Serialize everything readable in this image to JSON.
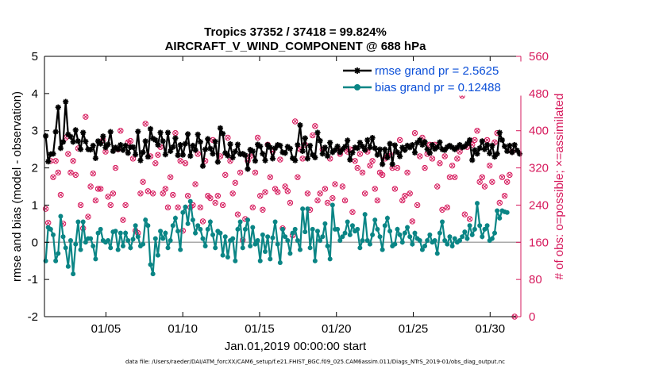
{
  "chart_data": {
    "type": "line",
    "title": "Tropics 37352 / 37418 = 99.824%",
    "subtitle": "AIRCRAFT_V_WIND_COMPONENT @ 688 hPa",
    "xlabel": "Jan.01,2019 00:00:00 start",
    "ylabel": "rmse and bias (model - observation)",
    "y2label": "# of obs: o=possible; ×=assimilated",
    "footnote": "data file: /Users/raeder/DAI/ATM_forcXX/CAM6_setup/f.e21.FHIST_BGC.f09_025.CAM6assim.011/Diags_NTrS_2019-01/obs_diag_output.nc",
    "xlim": [
      1,
      32
    ],
    "ylim": [
      -2,
      5
    ],
    "y2lim": [
      0,
      560
    ],
    "xticks": [
      5,
      10,
      15,
      20,
      25,
      30
    ],
    "xtick_labels": [
      "01/05",
      "01/10",
      "01/15",
      "01/20",
      "01/25",
      "01/30"
    ],
    "yticks": [
      -2,
      -1,
      0,
      1,
      2,
      3,
      4,
      5
    ],
    "y2ticks": [
      0,
      80,
      160,
      240,
      320,
      400,
      480,
      560
    ],
    "grid": false,
    "legend_position": "top-right",
    "colors": {
      "rmse": "#000000",
      "bias": "#0a8585",
      "obs": "#d6195c",
      "zero_line": "#aaaaaa",
      "right_axis": "#d6195c",
      "legend_text": "#0b4fd8"
    },
    "series": [
      {
        "name": "rmse grand pr = 2.5625",
        "axis": "left",
        "marker": "asterisk",
        "values": [
          2.86,
          2.17,
          2.37,
          2.38,
          2.97,
          3.63,
          2.53,
          2.7,
          3.78,
          2.9,
          2.84,
          2.7,
          3.02,
          2.72,
          2.5,
          2.95,
          2.71,
          2.5,
          2.49,
          2.6,
          2.26,
          2.72,
          2.65,
          2.85,
          2.55,
          2.63,
          2.97,
          2.45,
          2.55,
          2.5,
          2.62,
          2.48,
          2.6,
          2.4,
          2.56,
          2.56,
          2.36,
          2.98,
          2.2,
          2.42,
          2.72,
          2.3,
          3.05,
          2.79,
          2.75,
          2.62,
          2.95,
          2.72,
          2.36,
          2.95,
          2.45,
          2.56,
          2.8,
          2.34,
          2.62,
          2.35,
          2.65,
          2.91,
          2.32,
          2.6,
          2.48,
          2.9,
          2.7,
          2.05,
          2.5,
          2.78,
          2.52,
          2.38,
          2.71,
          2.16,
          3.07,
          2.92,
          2.4,
          2.33,
          2.64,
          2.28,
          2.44,
          2.63,
          2.37,
          2.38,
          2.34,
          1.97,
          2.49,
          2.45,
          2.19,
          2.63,
          2.58,
          2.38,
          2.2,
          2.62,
          2.55,
          2.25,
          2.53,
          2.62,
          2.6,
          2.42,
          2.4,
          2.57,
          2.52,
          2.26,
          2.2,
          2.62,
          3.15,
          2.45,
          2.8,
          2.25,
          2.6,
          2.35,
          2.28,
          2.95,
          2.73,
          2.38,
          2.55,
          2.32,
          2.68,
          2.42,
          2.48,
          2.58,
          2.42,
          2.5,
          2.57,
          2.74,
          2.22,
          2.41,
          2.55,
          2.53,
          2.68,
          2.58,
          2.48,
          2.75,
          2.55,
          2.81,
          2.53,
          2.35,
          2.5,
          2.1,
          2.5,
          2.28,
          2.65,
          2.1,
          2.61,
          2.42,
          2.31,
          2.55,
          2.48,
          2.6,
          2.55,
          2.62,
          2.41,
          2.68,
          2.75,
          2.62,
          2.7,
          2.5,
          2.4,
          2.62,
          2.51,
          2.56,
          2.69,
          2.5,
          2.48,
          2.56,
          2.6,
          2.55,
          2.5,
          2.55,
          2.62,
          2.55,
          2.58,
          2.65,
          2.75,
          2.21,
          2.48,
          2.38,
          2.53,
          2.72,
          2.5,
          2.62,
          2.39,
          2.6,
          2.3,
          2.38,
          2.95,
          2.75,
          2.58,
          2.45,
          2.6,
          2.42,
          2.62,
          2.47,
          2.38
        ]
      },
      {
        "name": "bias grand pr = 0.12488",
        "axis": "left",
        "marker": "dot",
        "values": [
          -0.5,
          0.4,
          0.35,
          0.2,
          -0.5,
          -0.3,
          0.7,
          0.15,
          -0.15,
          -0.65,
          0.05,
          -0.85,
          -0.05,
          0.55,
          -0.2,
          0.55,
          0.0,
          0.1,
          0.1,
          -0.1,
          -0.45,
          0.25,
          0.35,
          0.05,
          0.0,
          0.05,
          -0.15,
          0.28,
          0.3,
          -0.2,
          0.25,
          -0.1,
          0.25,
          0.05,
          -0.15,
          0.08,
          0.45,
          0.15,
          -0.1,
          -0.05,
          0.6,
          0.45,
          -0.6,
          -0.85,
          0.1,
          -0.35,
          0.3,
          0.1,
          0.25,
          -0.15,
          0.05,
          0.45,
          0.65,
          0.3,
          -0.2,
          0.8,
          0.95,
          0.5,
          1.1,
          0.6,
          0.25,
          0.45,
          0.35,
          0.1,
          -0.1,
          0.35,
          0.55,
          0.2,
          -0.15,
          0.3,
          0.25,
          -0.35,
          0.15,
          -0.4,
          0.05,
          0.1,
          -0.5,
          0.35,
          0.55,
          -0.15,
          0.35,
          0.6,
          -0.1,
          0.4,
          -0.05,
          0.05,
          -0.5,
          0.2,
          -0.25,
          0.15,
          -0.45,
          0.12,
          0.55,
          -0.05,
          -0.55,
          0.35,
          0.15,
          0.05,
          -0.3,
          0.25,
          0.35,
          0.05,
          -0.2,
          0.9,
          0.28,
          0.9,
          -0.15,
          0.35,
          -0.5,
          0.3,
          0.05,
          0.15,
          0.5,
          -0.1,
          -0.45,
          1.0,
          0.35,
          0.35,
          0.05,
          0.15,
          0.25,
          0.55,
          0.2,
          0.45,
          0.3,
          0.35,
          -0.15,
          0.05,
          0.75,
          0.05,
          -0.05,
          0.2,
          0.6,
          0.35,
          0.15,
          -0.2,
          0.45,
          0.65,
          0.3,
          -0.1,
          -0.05,
          0.35,
          0.2,
          0.0,
          0.25,
          0.4,
          0.15,
          -0.05,
          0.25,
          0.1,
          0.05,
          -0.2,
          -0.1,
          0.05,
          0.2,
          0.0,
          0.05,
          -0.3,
          0.25,
          0.55,
          0.05,
          -0.05,
          0.15,
          -0.1,
          0.1,
          0.0,
          0.05,
          0.15,
          0.28,
          0.1,
          0.45,
          0.2,
          0.35,
          1.05,
          0.45,
          0.15,
          0.35,
          0.45,
          0.05,
          0.1,
          0.25,
          0.85,
          0.65,
          0.85,
          0.82,
          0.8
        ]
      }
    ],
    "obs_counts": {
      "name": "# of obs",
      "axis": "right",
      "marker": "circle-x",
      "values": [
        232,
        202,
        335,
        300,
        335,
        310,
        262,
        200,
        385,
        350,
        310,
        335,
        305,
        362,
        240,
        190,
        430,
        215,
        280,
        308,
        250,
        275,
        275,
        380,
        355,
        258,
        240,
        265,
        320,
        360,
        400,
        208,
        240,
        375,
        378,
        340,
        185,
        180,
        265,
        290,
        415,
        270,
        345,
        265,
        330,
        348,
        365,
        265,
        275,
        235,
        300,
        262,
        395,
        235,
        335,
        185,
        330,
        260,
        235,
        240,
        285,
        350,
        235,
        205,
        335,
        260,
        255,
        380,
        245,
        260,
        345,
        240,
        305,
        385,
        335,
        265,
        288,
        220,
        310,
        165,
        210,
        335,
        345,
        235,
        310,
        385,
        260,
        230,
        268,
        370,
        300,
        355,
        275,
        268,
        338,
        190,
        280,
        270,
        245,
        175,
        420,
        300,
        360,
        340,
        370,
        265,
        230,
        390,
        410,
        250,
        265,
        360,
        275,
        245,
        340,
        255,
        285,
        360,
        350,
        280,
        250,
        355,
        360,
        225,
        335,
        320,
        350,
        310,
        265,
        355,
        325,
        335,
        275,
        250,
        310,
        305,
        340,
        345,
        350,
        320,
        275,
        320,
        380,
        250,
        260,
        310,
        265,
        205,
        395,
        240,
        345,
        385,
        320,
        350,
        370,
        340,
        370,
        280,
        330,
        230,
        345,
        235,
        300,
        325,
        300,
        340,
        355,
        475,
        220,
        365,
        210,
        370,
        380,
        400,
        290,
        300,
        280,
        380,
        325,
        290,
        375,
        395,
        245,
        300,
        260,
        290,
        305,
        355,
        0
      ]
    }
  }
}
